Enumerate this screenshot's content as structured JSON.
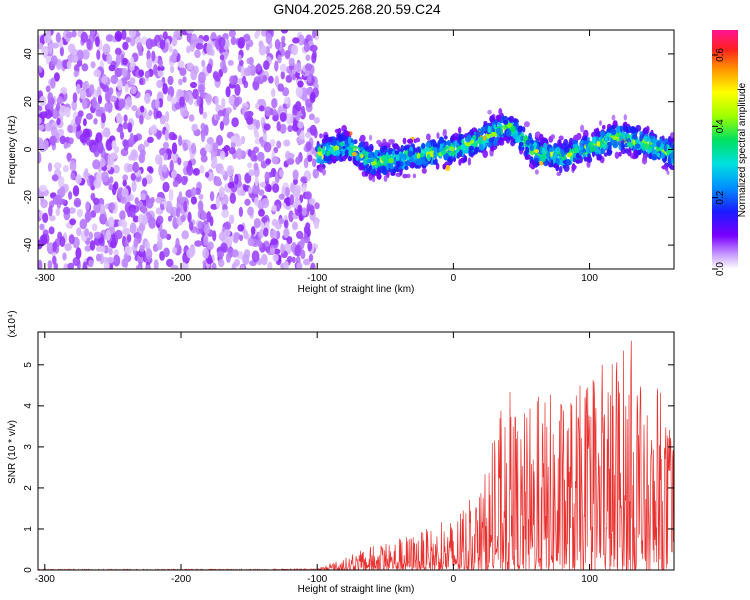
{
  "title": "GN04.2025.268.20.59.C24",
  "chart_data": [
    {
      "type": "heatmap",
      "xlabel": "Height of straight line (km)",
      "ylabel": "Frequency (Hz)",
      "xlim": [
        -305,
        162
      ],
      "ylim": [
        -50,
        50
      ],
      "xticks": [
        -300,
        -200,
        -100,
        0,
        100
      ],
      "yticks": [
        -40,
        -20,
        0,
        20,
        40
      ],
      "colorbar": {
        "label": "Normalized spectral amplitude",
        "range": [
          0,
          0.67
        ],
        "ticks": [
          "0.0",
          "0.2",
          "0.4",
          "0.6"
        ]
      },
      "regions": [
        {
          "x": [
            -305,
            -100
          ],
          "frequency": [
            -50,
            50
          ],
          "amplitude_range": [
            0.02,
            0.08
          ]
        },
        {
          "x": [
            -100,
            162
          ],
          "frequency_center_track": [
            [
              -100,
              -2
            ],
            [
              -80,
              2
            ],
            [
              -60,
              -5
            ],
            [
              -40,
              -4
            ],
            [
              -20,
              -2
            ],
            [
              0,
              0
            ],
            [
              20,
              4
            ],
            [
              40,
              10
            ],
            [
              60,
              -1
            ],
            [
              80,
              -3
            ],
            [
              100,
              1
            ],
            [
              120,
              5
            ],
            [
              140,
              3
            ],
            [
              162,
              -2
            ]
          ],
          "band_halfwidth": 10,
          "amplitude_range": [
            0.05,
            0.6
          ]
        }
      ]
    },
    {
      "type": "line",
      "xlabel": "Height of straight line (km)",
      "ylabel": "SNR (10 * v/v)",
      "y_scale_label": "(x10⁴)",
      "xlim": [
        -305,
        162
      ],
      "ylim": [
        0,
        5.8
      ],
      "xticks": [
        -300,
        -200,
        -100,
        0,
        100
      ],
      "yticks": [
        0,
        1,
        2,
        3,
        4,
        5
      ],
      "color": "#e8312f",
      "series": [
        {
          "x": [
            -305,
            -200,
            -100,
            -80,
            -60,
            -40,
            -20,
            0,
            20,
            30,
            40,
            50,
            60,
            80,
            100,
            120,
            135,
            140,
            150,
            162
          ],
          "y_peak": [
            0.02,
            0.02,
            0.03,
            0.3,
            0.6,
            0.8,
            1.0,
            1.3,
            2.0,
            3.3,
            4.5,
            3.8,
            4.3,
            4.4,
            4.6,
            5.6,
            5.8,
            3.6,
            4.6,
            3.4
          ]
        }
      ]
    }
  ]
}
